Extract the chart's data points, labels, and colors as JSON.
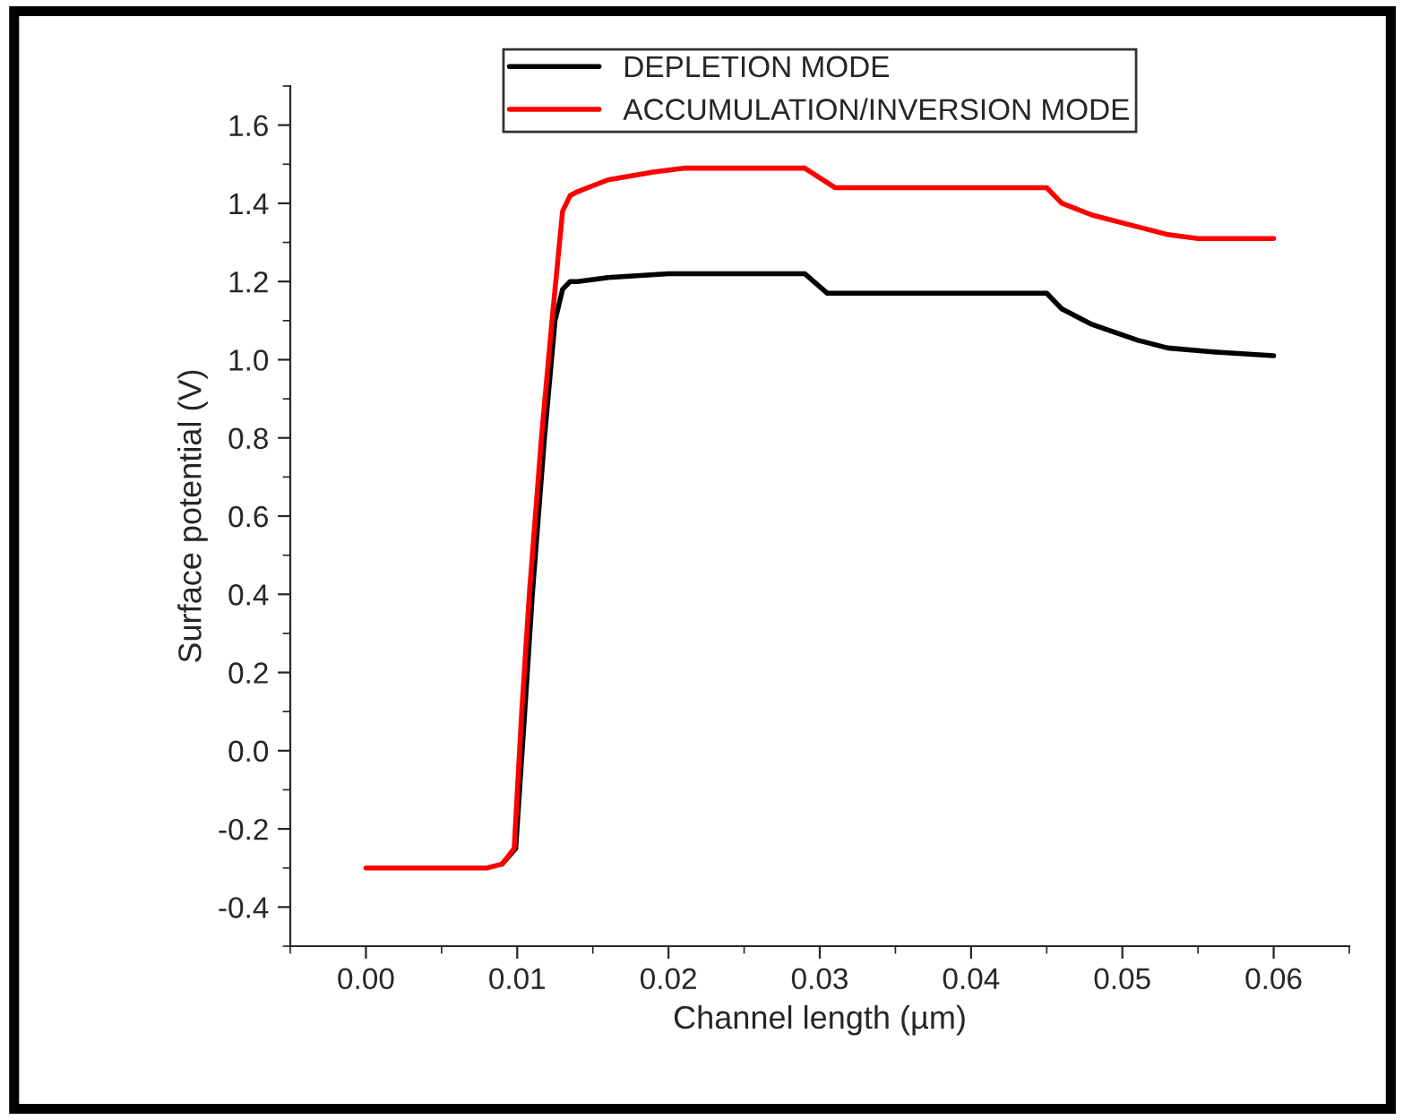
{
  "chart_data": {
    "type": "line",
    "xlabel": "Channel length (µm)",
    "ylabel": "Surface potential (V)",
    "xlim": [
      -0.005,
      0.065
    ],
    "xticks": [
      {
        "value": 0,
        "label": "0.00"
      },
      {
        "value": 0.01,
        "label": "0.01"
      },
      {
        "value": 0.02,
        "label": "0.02"
      },
      {
        "value": 0.03,
        "label": "0.03"
      },
      {
        "value": 0.04,
        "label": "0.04"
      },
      {
        "value": 0.05,
        "label": "0.05"
      },
      {
        "value": 0.06,
        "label": "0.06"
      }
    ],
    "ylim": [
      -0.5,
      1.7
    ],
    "yticks": [
      {
        "value": -0.4,
        "label": "-0.4"
      },
      {
        "value": -0.2,
        "label": "-0.2"
      },
      {
        "value": 0,
        "label": "0.0"
      },
      {
        "value": 0.2,
        "label": "0.2"
      },
      {
        "value": 0.4,
        "label": "0.4"
      },
      {
        "value": 0.6,
        "label": "0.6"
      },
      {
        "value": 0.8,
        "label": "0.8"
      },
      {
        "value": 1.0,
        "label": "1.0"
      },
      {
        "value": 1.2,
        "label": "1.2"
      },
      {
        "value": 1.4,
        "label": "1.4"
      },
      {
        "value": 1.6,
        "label": "1.6"
      }
    ],
    "grid": false,
    "legend": "top",
    "marker": "none",
    "line_style": "solid",
    "series": [
      {
        "name": "DEPLETION MODE",
        "color": "#000000",
        "x": [
          0.009,
          0.0099,
          0.0105,
          0.011,
          0.0118,
          0.0125,
          0.013,
          0.0135,
          0.014,
          0.016,
          0.02,
          0.029,
          0.0305,
          0.045,
          0.046,
          0.048,
          0.051,
          0.053,
          0.056,
          0.06
        ],
        "values": [
          -0.29,
          -0.25,
          0.1,
          0.4,
          0.8,
          1.1,
          1.18,
          1.2,
          1.2,
          1.21,
          1.22,
          1.22,
          1.17,
          1.17,
          1.13,
          1.09,
          1.05,
          1.03,
          1.02,
          1.01
        ]
      },
      {
        "name": "ACCUMULATION/INVERSION MODE",
        "color": "#ff0000",
        "x": [
          0,
          0.008,
          0.009,
          0.0098,
          0.0103,
          0.0108,
          0.0116,
          0.0123,
          0.0128,
          0.013,
          0.0135,
          0.014,
          0.016,
          0.019,
          0.021,
          0.029,
          0.031,
          0.045,
          0.046,
          0.048,
          0.051,
          0.053,
          0.055,
          0.06
        ],
        "values": [
          -0.3,
          -0.3,
          -0.29,
          -0.25,
          0.1,
          0.4,
          0.8,
          1.1,
          1.3,
          1.38,
          1.42,
          1.43,
          1.46,
          1.48,
          1.49,
          1.49,
          1.44,
          1.44,
          1.4,
          1.37,
          1.34,
          1.32,
          1.31,
          1.31
        ]
      }
    ]
  }
}
